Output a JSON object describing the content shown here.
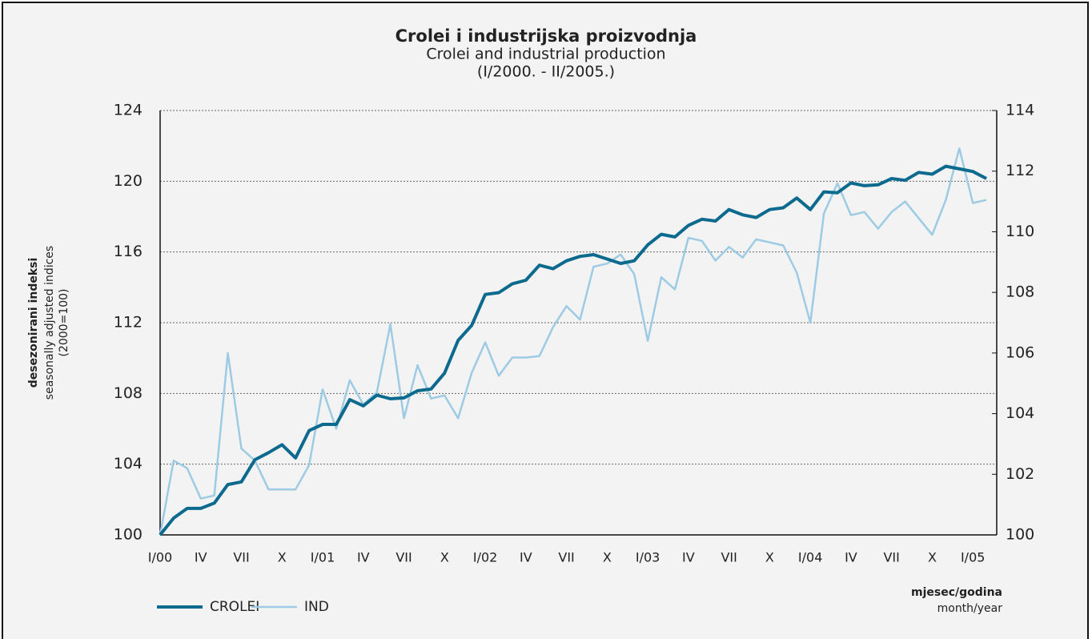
{
  "chart_data": {
    "type": "line",
    "title": "Crolei i industrijska proizvodnja",
    "subtitle": "Crolei and industrial production",
    "period": "(I/2000. - II/2005.)",
    "y_label": [
      "desezonirani indeksi",
      "seasonally adjusted indices",
      "(2000=100)"
    ],
    "x_label": [
      "mjesec/godina",
      "month/year"
    ],
    "categories": [
      "I/00",
      null,
      null,
      "IV",
      null,
      null,
      "VII",
      null,
      null,
      "X",
      null,
      null,
      "I/01",
      null,
      null,
      "IV",
      null,
      null,
      "VII",
      null,
      null,
      "X",
      null,
      null,
      "I/02",
      null,
      null,
      "IV",
      null,
      null,
      "VII",
      null,
      null,
      "X",
      null,
      null,
      "I/03",
      null,
      null,
      "IV",
      null,
      null,
      "VII",
      null,
      null,
      "X",
      null,
      null,
      "I/04",
      null,
      null,
      "IV",
      null,
      null,
      "VII",
      null,
      null,
      "X",
      null,
      null,
      "I/05",
      null
    ],
    "series": [
      {
        "name": "CROLEI",
        "color": "#0b6a8e",
        "axis": "y",
        "values": [
          100,
          100.95,
          101.5,
          101.5,
          101.8,
          102.85,
          103.0,
          104.25,
          104.65,
          105.1,
          104.35,
          105.9,
          106.25,
          106.25,
          107.65,
          107.3,
          107.9,
          107.7,
          107.75,
          108.15,
          108.25,
          109.15,
          111.0,
          111.85,
          113.6,
          113.7,
          114.2,
          114.4,
          115.25,
          115.05,
          115.5,
          115.75,
          115.85,
          115.6,
          115.35,
          115.5,
          116.4,
          117.0,
          116.85,
          117.5,
          117.85,
          117.75,
          118.4,
          118.1,
          117.95,
          118.4,
          118.5,
          119.05,
          118.4,
          119.4,
          119.35,
          119.9,
          119.75,
          119.8,
          120.15,
          120.05,
          120.5,
          120.4,
          120.85,
          120.7,
          120.55,
          120.15
        ]
      },
      {
        "name": "IND",
        "color": "#9dcbe4",
        "axis": "y2",
        "values": [
          100,
          102.45,
          102.2,
          101.2,
          101.3,
          106.0,
          102.85,
          102.45,
          101.5,
          101.5,
          101.5,
          102.3,
          104.8,
          103.5,
          105.1,
          104.3,
          104.7,
          106.95,
          103.85,
          105.6,
          104.5,
          104.6,
          103.85,
          105.35,
          106.35,
          105.25,
          105.85,
          105.85,
          105.9,
          106.85,
          107.55,
          107.1,
          108.85,
          108.95,
          109.25,
          108.6,
          106.4,
          108.5,
          108.1,
          109.8,
          109.7,
          109.05,
          109.5,
          109.15,
          109.75,
          109.65,
          109.55,
          108.65,
          107.0,
          110.6,
          111.6,
          110.55,
          110.65,
          110.1,
          110.65,
          111.0,
          110.45,
          109.9,
          111.05,
          112.75,
          110.95,
          111.05
        ]
      }
    ],
    "ylim": [
      100,
      124
    ],
    "yticks": [
      100,
      104,
      108,
      112,
      116,
      120,
      124
    ],
    "y2lim": [
      100,
      114
    ],
    "y2ticks": [
      100,
      102,
      104,
      106,
      108,
      110,
      112,
      114
    ],
    "grid": true,
    "legend": "bottom-left"
  }
}
